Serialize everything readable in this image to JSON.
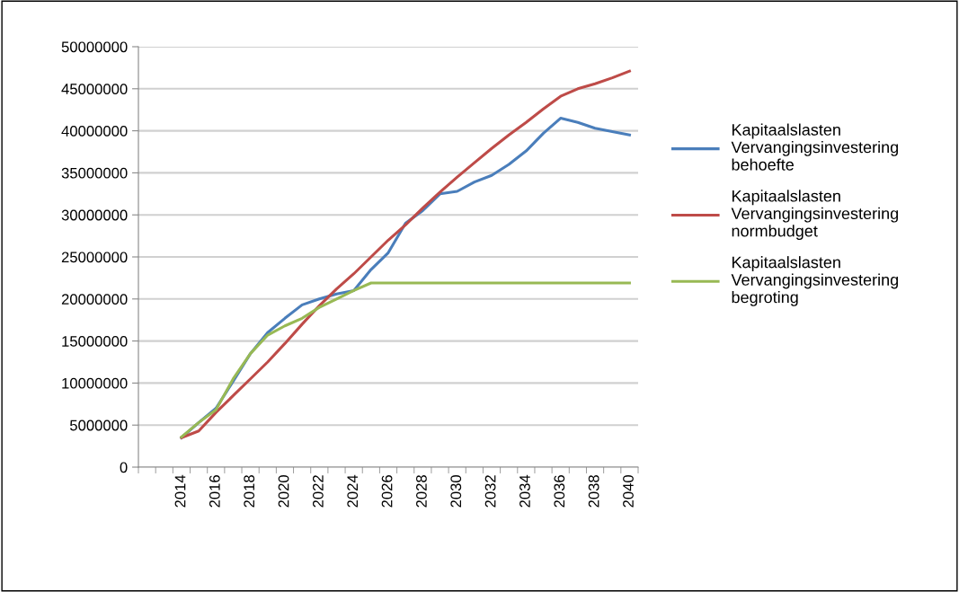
{
  "chart_data": {
    "type": "line",
    "categories": [
      null,
      null,
      "2014",
      null,
      "2016",
      null,
      "2018",
      null,
      "2020",
      null,
      "2022",
      null,
      "2024",
      null,
      "2026",
      null,
      "2028",
      null,
      "2030",
      null,
      "2032",
      null,
      "2034",
      null,
      "2036",
      null,
      "2038",
      null,
      "2040"
    ],
    "series": [
      {
        "name": "Kapitaalslasten\nVervangingsinvestering\nbehoefte",
        "color": "#4a7ebb",
        "values": [
          null,
          null,
          3500000,
          5300000,
          7000000,
          10200000,
          13500000,
          16000000,
          17700000,
          19300000,
          20000000,
          20600000,
          21000000,
          23500000,
          25500000,
          29000000,
          30500000,
          32500000,
          32800000,
          33900000,
          34700000,
          36000000,
          37600000,
          39700000,
          41500000,
          41000000,
          40300000,
          39900000,
          39500000
        ]
      },
      {
        "name": "Kapitaalslasten\nVervangingsinvestering\nnormbudget",
        "color": "#be4b48",
        "values": [
          null,
          null,
          3500000,
          4300000,
          6500000,
          8500000,
          10500000,
          12500000,
          14700000,
          17000000,
          19200000,
          21200000,
          23000000,
          25000000,
          27000000,
          28800000,
          30800000,
          32700000,
          34500000,
          36200000,
          37900000,
          39500000,
          41000000,
          42600000,
          44100000,
          45000000,
          45600000,
          46300000,
          47100000
        ]
      },
      {
        "name": "Kapitaalslasten\nVervangingsinvestering\nbegroting",
        "color": "#98b954",
        "values": [
          null,
          null,
          3600000,
          5300000,
          6800000,
          10500000,
          13500000,
          15700000,
          16800000,
          17700000,
          19000000,
          20000000,
          21000000,
          21900000,
          21900000,
          21900000,
          21900000,
          21900000,
          21900000,
          21900000,
          21900000,
          21900000,
          21900000,
          21900000,
          21900000,
          21900000,
          21900000,
          21900000,
          21900000
        ]
      }
    ],
    "ylim": [
      0,
      50000000
    ],
    "yticks": [
      0,
      5000000,
      10000000,
      15000000,
      20000000,
      25000000,
      30000000,
      35000000,
      40000000,
      45000000,
      50000000
    ],
    "grid": "y",
    "legend": "right",
    "marker": "none",
    "line_style": "solid"
  }
}
